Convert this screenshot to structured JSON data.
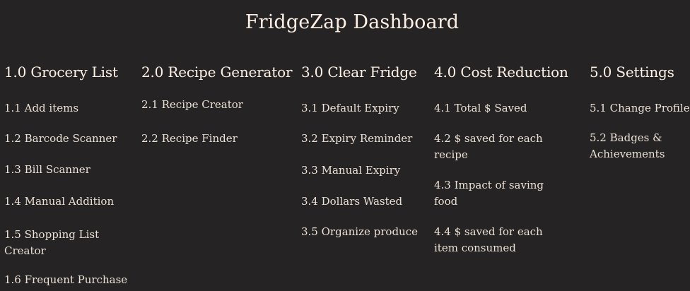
{
  "title": "FridgeZap Dashboard",
  "columns": [
    {
      "heading": "1.0 Grocery List",
      "items": [
        "1.1 Add items",
        "1.2 Barcode Scanner",
        "1.3 Bill Scanner",
        "1.4 Manual Addition",
        "1.5 Shopping List Creator",
        "1.6 Frequent Purchase"
      ]
    },
    {
      "heading": "2.0 Recipe Generator",
      "items": [
        "2.1 Recipe Creator",
        "2.2 Recipe Finder"
      ]
    },
    {
      "heading": "3.0 Clear Fridge",
      "items": [
        "3.1 Default Expiry",
        "3.2 Expiry Reminder",
        "3.3 Manual Expiry",
        "3.4 Dollars Wasted",
        "3.5 Organize produce"
      ]
    },
    {
      "heading": "4.0 Cost Reduction",
      "items": [
        "4.1 Total $ Saved",
        "4.2 $ saved for each recipe",
        "4.3 Impact of saving food",
        "4.4 $ saved for each item consumed"
      ]
    },
    {
      "heading": "5.0 Settings",
      "items": [
        "5.1 Change Profile",
        "5.2 Badges & Achievements"
      ]
    }
  ]
}
